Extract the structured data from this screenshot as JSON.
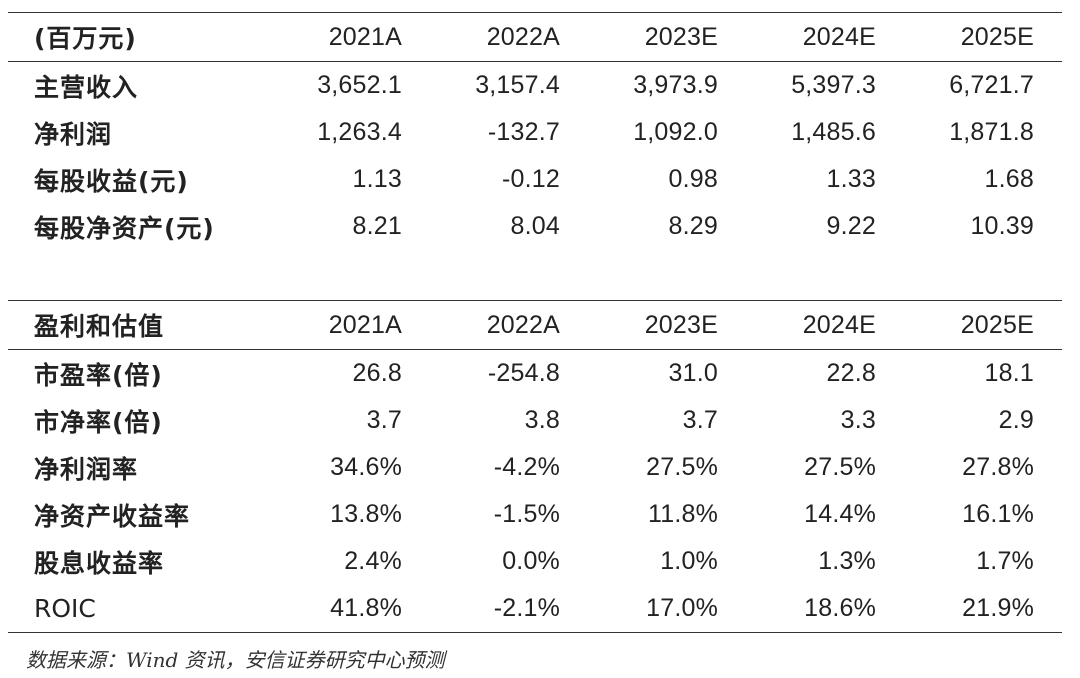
{
  "table1": {
    "header": [
      "(百万元)",
      "2021A",
      "2022A",
      "2023E",
      "2024E",
      "2025E"
    ],
    "rows": [
      [
        "主营收入",
        "3,652.1",
        "3,157.4",
        "3,973.9",
        "5,397.3",
        "6,721.7"
      ],
      [
        "净利润",
        "1,263.4",
        "-132.7",
        "1,092.0",
        "1,485.6",
        "1,871.8"
      ],
      [
        "每股收益(元)",
        "1.13",
        "-0.12",
        "0.98",
        "1.33",
        "1.68"
      ],
      [
        "每股净资产(元)",
        "8.21",
        "8.04",
        "8.29",
        "9.22",
        "10.39"
      ]
    ]
  },
  "table2": {
    "header": [
      "盈利和估值",
      "2021A",
      "2022A",
      "2023E",
      "2024E",
      "2025E"
    ],
    "rows": [
      [
        "市盈率(倍)",
        "26.8",
        "-254.8",
        "31.0",
        "22.8",
        "18.1"
      ],
      [
        "市净率(倍)",
        "3.7",
        "3.8",
        "3.7",
        "3.3",
        "2.9"
      ],
      [
        "净利润率",
        "34.6%",
        "-4.2%",
        "27.5%",
        "27.5%",
        "27.8%"
      ],
      [
        "净资产收益率",
        "13.8%",
        "-1.5%",
        "11.8%",
        "14.4%",
        "16.1%"
      ],
      [
        "股息收益率",
        "2.4%",
        "0.0%",
        "1.0%",
        "1.3%",
        "1.7%"
      ],
      [
        "ROIC",
        "41.8%",
        "-2.1%",
        "17.0%",
        "18.6%",
        "21.9%"
      ]
    ]
  },
  "source": "数据来源：Wind 资讯，安信证券研究中心预测"
}
